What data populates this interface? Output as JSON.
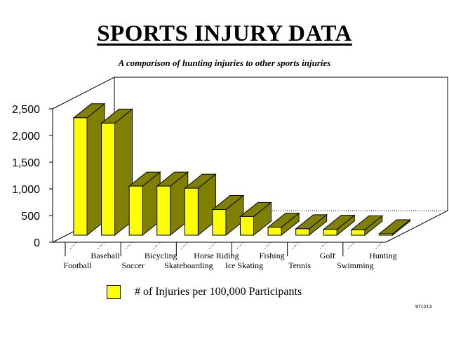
{
  "chart_data": {
    "type": "bar",
    "title": "SPORTS INJURY DATA",
    "subtitle": "A comparison of hunting injuries to other sports injuries",
    "categories": [
      "Football",
      "Baseball",
      "Soccer",
      "Bicycling",
      "Skateboarding",
      "Horse Riding",
      "Ice Skating",
      "Fishing",
      "Tennis",
      "Golf",
      "Swimming",
      "Hunting"
    ],
    "series": [
      {
        "name": "# of Injuries per 100,000 Participants",
        "values": [
          2200,
          2100,
          920,
          920,
          880,
          480,
          350,
          150,
          120,
          110,
          100,
          7
        ]
      }
    ],
    "ylim": [
      0,
      2500
    ],
    "yticks": [
      "0",
      "500",
      "1,000",
      "1,500",
      "2,000",
      "2,500"
    ],
    "grid": false,
    "legend": "bottom",
    "colors": {
      "front": "#ffff00",
      "side": "#808000",
      "top": "#808000"
    }
  },
  "footer_code": "971213"
}
